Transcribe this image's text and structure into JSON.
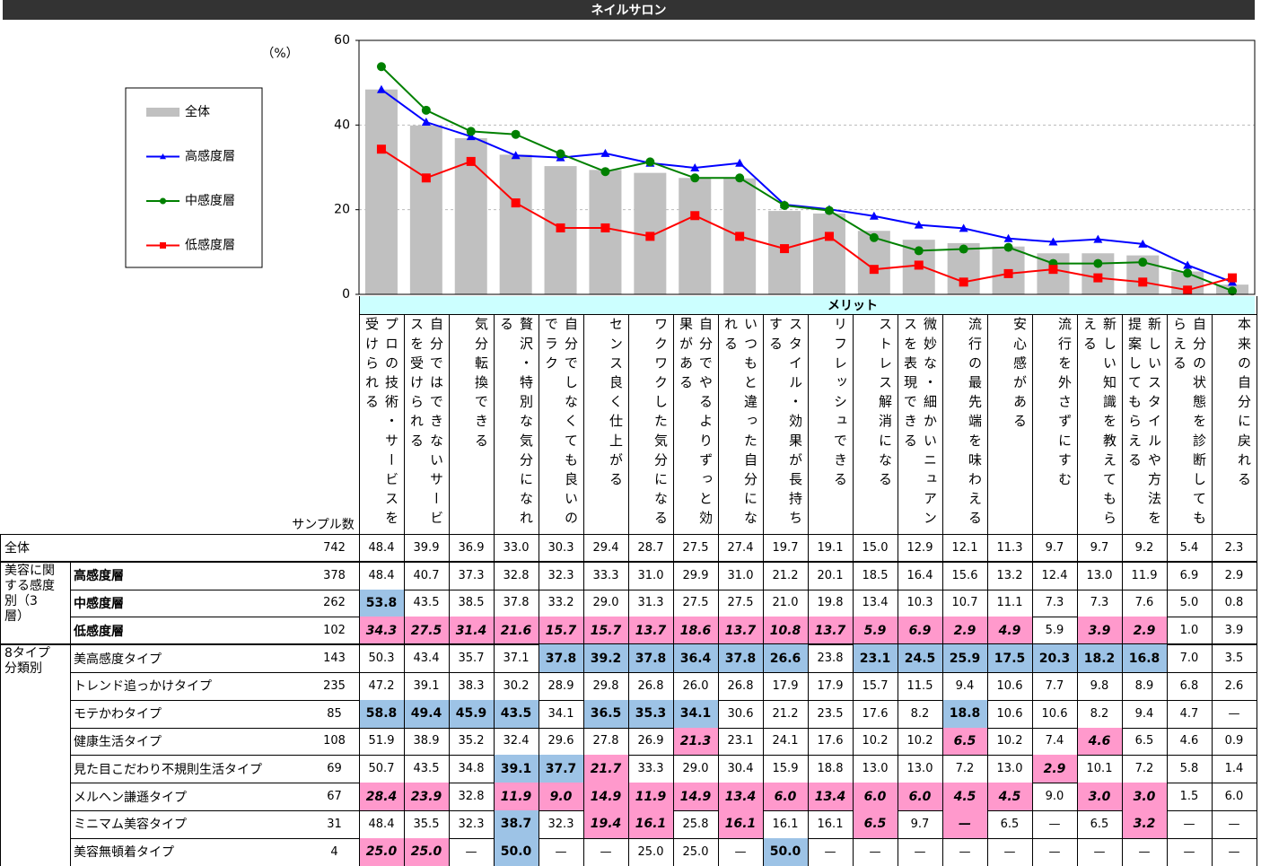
{
  "title": "ネイルサロン",
  "chart_data": {
    "type": "bar",
    "y_label": "（%）",
    "x_label": "メリット",
    "categories": [
      "プロの技術・サービスを受けられる",
      "自分ではできないサービスを受けられる",
      "気分転換できる",
      "贅沢・特別な気分になれる",
      "自分でしなくても良いのでラク",
      "センス良く仕上がる",
      "ワクワクした気分になる",
      "自分でやるよりずっと効果がある",
      "いつもと違った自分になれる",
      "スタイル・効果が長持ちする",
      "リフレッシュできる",
      "ストレス解消になる",
      "微妙な・細かいニュアンスを表現できる",
      "流行の最先端を味わえる",
      "安心感がある",
      "流行を外さずにすむ",
      "新しい知識を教えてもらえる",
      "新しいスタイルや方法を提案してもらえる",
      "自分の状態を診断してもらえる",
      "本来の自分に戻れる"
    ],
    "ylim": [
      0,
      60
    ],
    "yticks": [
      0,
      20,
      40,
      60
    ],
    "grid": true,
    "series": [
      {
        "name": "全体",
        "type": "bar",
        "color": "#c0c0c0",
        "values": [
          48.4,
          39.9,
          36.9,
          33.0,
          30.3,
          29.4,
          28.7,
          27.5,
          27.4,
          19.7,
          19.1,
          15.0,
          12.9,
          12.1,
          11.3,
          9.7,
          9.7,
          9.2,
          5.4,
          2.3
        ]
      },
      {
        "name": "高感度層",
        "type": "line",
        "marker": "triangle",
        "color": "#0000ff",
        "values": [
          48.4,
          40.7,
          37.3,
          32.8,
          32.3,
          33.3,
          31.0,
          29.9,
          31.0,
          21.2,
          20.1,
          18.5,
          16.4,
          15.6,
          13.2,
          12.4,
          13.0,
          11.9,
          6.9,
          2.9
        ]
      },
      {
        "name": "中感度層",
        "type": "line",
        "marker": "circle",
        "color": "#008000",
        "values": [
          53.8,
          43.5,
          38.5,
          37.8,
          33.2,
          29.0,
          31.3,
          27.5,
          27.5,
          21.0,
          19.8,
          13.4,
          10.3,
          10.7,
          11.1,
          7.3,
          7.3,
          7.6,
          5.0,
          0.8
        ]
      },
      {
        "name": "低感度層",
        "type": "line",
        "marker": "square",
        "color": "#ff0000",
        "values": [
          34.3,
          27.5,
          31.4,
          21.6,
          15.7,
          15.7,
          13.7,
          18.6,
          13.7,
          10.8,
          13.7,
          5.9,
          6.9,
          2.9,
          4.9,
          5.9,
          3.9,
          2.9,
          1.0,
          3.9
        ]
      }
    ]
  },
  "table": {
    "sample_header": "サンプル数",
    "high_fill": "#9dc3e6",
    "low_fill": "#ff99cc",
    "total": {
      "label": "全体",
      "sample": 742,
      "cells": [
        "48.4",
        "39.9",
        "36.9",
        "33.0",
        "30.3",
        "29.4",
        "28.7",
        "27.5",
        "27.4",
        "19.7",
        "19.1",
        "15.0",
        "12.9",
        "12.1",
        "11.3",
        "9.7",
        "9.7",
        "9.2",
        "5.4",
        "2.3"
      ]
    },
    "groups": [
      {
        "label": "美容に関する感度別（3層）",
        "bold": true,
        "rows": [
          {
            "label": "高感度層",
            "sample": 378,
            "cells": [
              "48.4",
              "40.7",
              "37.3",
              "32.8",
              "32.3",
              "33.3",
              "31.0",
              "29.9",
              "31.0",
              "21.2",
              "20.1",
              "18.5",
              "16.4",
              "15.6",
              "13.2",
              "12.4",
              "13.0",
              "11.9",
              "6.9",
              "2.9"
            ]
          },
          {
            "label": "中感度層",
            "sample": 262,
            "cells": [
              {
                "text": "53.8",
                "fill": "#9dc3e6"
              },
              "43.5",
              "38.5",
              "37.8",
              "33.2",
              "29.0",
              "31.3",
              "27.5",
              "27.5",
              "21.0",
              "19.8",
              "13.4",
              "10.3",
              "10.7",
              "11.1",
              "7.3",
              "7.3",
              "7.6",
              "5.0",
              "0.8"
            ]
          },
          {
            "label": "低感度層",
            "sample": 102,
            "cells": [
              {
                "text": "34.3",
                "fill": "#ff99cc"
              },
              {
                "text": "27.5",
                "fill": "#ff99cc"
              },
              {
                "text": "31.4",
                "fill": "#ff99cc"
              },
              {
                "text": "21.6",
                "fill": "#ff99cc"
              },
              {
                "text": "15.7",
                "fill": "#ff99cc"
              },
              {
                "text": "15.7",
                "fill": "#ff99cc"
              },
              {
                "text": "13.7",
                "fill": "#ff99cc"
              },
              {
                "text": "18.6",
                "fill": "#ff99cc"
              },
              {
                "text": "13.7",
                "fill": "#ff99cc"
              },
              {
                "text": "10.8",
                "fill": "#ff99cc"
              },
              {
                "text": "13.7",
                "fill": "#ff99cc"
              },
              {
                "text": "5.9",
                "fill": "#ff99cc"
              },
              {
                "text": "6.9",
                "fill": "#ff99cc"
              },
              {
                "text": "2.9",
                "fill": "#ff99cc"
              },
              {
                "text": "4.9",
                "fill": "#ff99cc"
              },
              "5.9",
              {
                "text": "3.9",
                "fill": "#ff99cc"
              },
              {
                "text": "2.9",
                "fill": "#ff99cc"
              },
              "1.0",
              "3.9"
            ]
          }
        ]
      },
      {
        "label": "8タイプ分類別",
        "bold": false,
        "rows": [
          {
            "label": "美高感度タイプ",
            "sample": 143,
            "cells": [
              "50.3",
              "43.4",
              "35.7",
              "37.1",
              {
                "text": "37.8",
                "fill": "#9dc3e6"
              },
              {
                "text": "39.2",
                "fill": "#9dc3e6"
              },
              {
                "text": "37.8",
                "fill": "#9dc3e6"
              },
              {
                "text": "36.4",
                "fill": "#9dc3e6"
              },
              {
                "text": "37.8",
                "fill": "#9dc3e6"
              },
              {
                "text": "26.6",
                "fill": "#9dc3e6"
              },
              "23.8",
              {
                "text": "23.1",
                "fill": "#9dc3e6"
              },
              {
                "text": "24.5",
                "fill": "#9dc3e6"
              },
              {
                "text": "25.9",
                "fill": "#9dc3e6"
              },
              {
                "text": "17.5",
                "fill": "#9dc3e6"
              },
              {
                "text": "20.3",
                "fill": "#9dc3e6"
              },
              {
                "text": "18.2",
                "fill": "#9dc3e6"
              },
              {
                "text": "16.8",
                "fill": "#9dc3e6"
              },
              "7.0",
              "3.5"
            ]
          },
          {
            "label": "トレンド追っかけタイプ",
            "sample": 235,
            "cells": [
              "47.2",
              "39.1",
              "38.3",
              "30.2",
              "28.9",
              "29.8",
              "26.8",
              "26.0",
              "26.8",
              "17.9",
              "17.9",
              "15.7",
              "11.5",
              "9.4",
              "10.6",
              "7.7",
              "9.8",
              "8.9",
              "6.8",
              "2.6"
            ]
          },
          {
            "label": "モテかわタイプ",
            "sample": 85,
            "cells": [
              {
                "text": "58.8",
                "fill": "#9dc3e6"
              },
              {
                "text": "49.4",
                "fill": "#9dc3e6"
              },
              {
                "text": "45.9",
                "fill": "#9dc3e6"
              },
              {
                "text": "43.5",
                "fill": "#9dc3e6"
              },
              "34.1",
              {
                "text": "36.5",
                "fill": "#9dc3e6"
              },
              {
                "text": "35.3",
                "fill": "#9dc3e6"
              },
              {
                "text": "34.1",
                "fill": "#9dc3e6"
              },
              "30.6",
              "21.2",
              "23.5",
              "17.6",
              "8.2",
              {
                "text": "18.8",
                "fill": "#9dc3e6"
              },
              "10.6",
              "10.6",
              "8.2",
              "9.4",
              "4.7",
              "—"
            ]
          },
          {
            "label": "健康生活タイプ",
            "sample": 108,
            "cells": [
              "51.9",
              "38.9",
              "35.2",
              "32.4",
              "29.6",
              "27.8",
              "26.9",
              {
                "text": "21.3",
                "fill": "#ff99cc"
              },
              "23.1",
              "24.1",
              "17.6",
              "10.2",
              "10.2",
              {
                "text": "6.5",
                "fill": "#ff99cc"
              },
              "10.2",
              "7.4",
              {
                "text": "4.6",
                "fill": "#ff99cc"
              },
              "6.5",
              "4.6",
              "0.9"
            ]
          },
          {
            "label": "見た目こだわり不規則生活タイプ",
            "sample": 69,
            "cells": [
              "50.7",
              "43.5",
              "34.8",
              {
                "text": "39.1",
                "fill": "#9dc3e6"
              },
              {
                "text": "37.7",
                "fill": "#9dc3e6"
              },
              {
                "text": "21.7",
                "fill": "#ff99cc"
              },
              "33.3",
              "29.0",
              "30.4",
              "15.9",
              "18.8",
              "13.0",
              "13.0",
              "7.2",
              "13.0",
              {
                "text": "2.9",
                "fill": "#ff99cc"
              },
              "10.1",
              "7.2",
              "5.8",
              "1.4"
            ]
          },
          {
            "label": "メルヘン謙遜タイプ",
            "sample": 67,
            "cells": [
              {
                "text": "28.4",
                "fill": "#ff99cc"
              },
              {
                "text": "23.9",
                "fill": "#ff99cc"
              },
              "32.8",
              {
                "text": "11.9",
                "fill": "#ff99cc"
              },
              {
                "text": "9.0",
                "fill": "#ff99cc"
              },
              {
                "text": "14.9",
                "fill": "#ff99cc"
              },
              {
                "text": "11.9",
                "fill": "#ff99cc"
              },
              {
                "text": "14.9",
                "fill": "#ff99cc"
              },
              {
                "text": "13.4",
                "fill": "#ff99cc"
              },
              {
                "text": "6.0",
                "fill": "#ff99cc"
              },
              {
                "text": "13.4",
                "fill": "#ff99cc"
              },
              {
                "text": "6.0",
                "fill": "#ff99cc"
              },
              {
                "text": "6.0",
                "fill": "#ff99cc"
              },
              {
                "text": "4.5",
                "fill": "#ff99cc"
              },
              {
                "text": "4.5",
                "fill": "#ff99cc"
              },
              "9.0",
              {
                "text": "3.0",
                "fill": "#ff99cc"
              },
              {
                "text": "3.0",
                "fill": "#ff99cc"
              },
              "1.5",
              "6.0"
            ]
          },
          {
            "label": "ミニマム美容タイプ",
            "sample": 31,
            "cells": [
              "48.4",
              "35.5",
              "32.3",
              {
                "text": "38.7",
                "fill": "#9dc3e6"
              },
              "32.3",
              {
                "text": "19.4",
                "fill": "#ff99cc"
              },
              {
                "text": "16.1",
                "fill": "#ff99cc"
              },
              "25.8",
              {
                "text": "16.1",
                "fill": "#ff99cc"
              },
              "16.1",
              "16.1",
              {
                "text": "6.5",
                "fill": "#ff99cc"
              },
              "9.7",
              {
                "text": "—",
                "fill": "#ff99cc"
              },
              "6.5",
              "—",
              "6.5",
              {
                "text": "3.2",
                "fill": "#ff99cc"
              },
              "—",
              "—"
            ]
          },
          {
            "label": "美容無頓着タイプ",
            "sample": 4,
            "cells": [
              {
                "text": "25.0",
                "fill": "#ff99cc"
              },
              {
                "text": "25.0",
                "fill": "#ff99cc"
              },
              "—",
              {
                "text": "50.0",
                "fill": "#9dc3e6"
              },
              "—",
              "—",
              "25.0",
              "25.0",
              "—",
              {
                "text": "50.0",
                "fill": "#9dc3e6"
              },
              "—",
              "—",
              "—",
              "—",
              "—",
              "—",
              "—",
              "—",
              "—",
              "—"
            ]
          }
        ]
      }
    ]
  }
}
